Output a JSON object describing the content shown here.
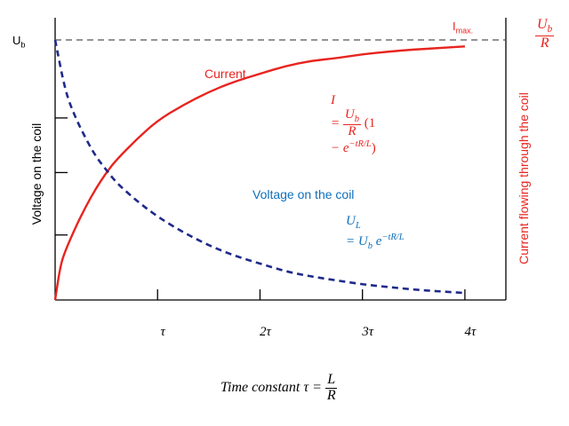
{
  "chart_data": {
    "type": "line",
    "x_ticks": [
      "τ",
      "2τ",
      "3τ",
      "4τ"
    ],
    "x_tick_values": [
      1,
      2,
      3,
      4
    ],
    "xlim": [
      0,
      4.4
    ],
    "ylim": [
      0,
      1
    ],
    "series": [
      {
        "name": "Current",
        "style": "solid",
        "color": "#e8241f",
        "x": [
          0,
          0.05,
          0.1,
          0.2,
          0.3,
          0.4,
          0.5,
          0.6,
          0.8,
          1.0,
          1.25,
          1.5,
          1.75,
          2.0,
          2.25,
          2.5,
          2.75,
          3.0,
          3.25,
          3.5,
          3.75,
          4.0
        ],
        "values": [
          0,
          0.13,
          0.19,
          0.28,
          0.36,
          0.43,
          0.49,
          0.54,
          0.62,
          0.69,
          0.75,
          0.8,
          0.84,
          0.87,
          0.9,
          0.92,
          0.93,
          0.945,
          0.955,
          0.963,
          0.969,
          0.975
        ]
      },
      {
        "name": "Voltage on the coil",
        "style": "dashed",
        "color": "#1f2a8a",
        "x": [
          0,
          0.1,
          0.2,
          0.3,
          0.4,
          0.5,
          0.6,
          0.8,
          1.0,
          1.25,
          1.5,
          1.75,
          2.0,
          2.25,
          2.5,
          2.75,
          3.0,
          3.25,
          3.5,
          3.75,
          4.0
        ],
        "values": [
          1,
          0.8,
          0.7,
          0.62,
          0.55,
          0.5,
          0.45,
          0.38,
          0.32,
          0.26,
          0.21,
          0.17,
          0.14,
          0.11,
          0.09,
          0.075,
          0.06,
          0.05,
          0.04,
          0.033,
          0.027
        ]
      }
    ],
    "left_axis": {
      "label": "Voltage on the coil",
      "top_label": "U",
      "top_label_sub": "b"
    },
    "right_axis": {
      "label": "Current flowing through the coil",
      "top_num": "U",
      "top_num_sub": "b",
      "top_den": "R"
    },
    "imax_label": "I",
    "imax_sub": "max.",
    "annotations": {
      "current_label": "Current",
      "voltage_label": "Voltage on the coil",
      "current_formula": {
        "lhs": "I",
        "eq": "=",
        "num": "U",
        "num_sub": "b",
        "den": "R",
        "paren_open": "(1",
        "line2": "− e",
        "exp": "−tR/L",
        "paren_close": ")"
      },
      "voltage_formula": {
        "lhs": "U",
        "lhs_sub": "L",
        "eq": "= U",
        "eq_sub": "b",
        "e": "e",
        "exp": "−tR/L"
      }
    },
    "xlabel": {
      "text": "Time constant τ =",
      "num": "L",
      "den": "R"
    }
  }
}
